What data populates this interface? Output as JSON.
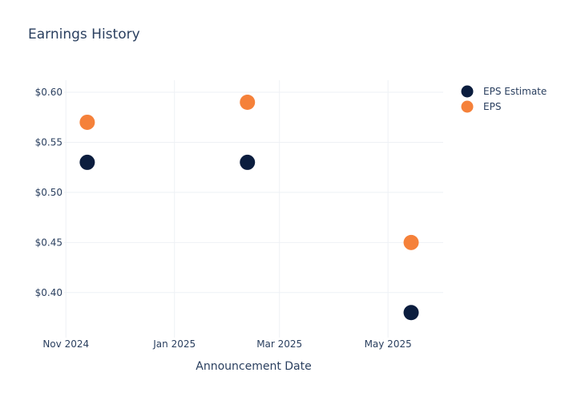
{
  "chart_data": {
    "type": "scatter",
    "title": "Earnings History",
    "xlabel": "Announcement Date",
    "ylabel": "",
    "x_ticks": [
      {
        "date": "2024-11-01",
        "label": "Nov 2024"
      },
      {
        "date": "2025-01-01",
        "label": "Jan 2025"
      },
      {
        "date": "2025-03-01",
        "label": "Mar 2025"
      },
      {
        "date": "2025-05-01",
        "label": "May 2025"
      }
    ],
    "y_ticks": [
      {
        "value": 0.4,
        "label": "$0.40"
      },
      {
        "value": 0.45,
        "label": "$0.45"
      },
      {
        "value": 0.5,
        "label": "$0.50"
      },
      {
        "value": 0.55,
        "label": "$0.55"
      },
      {
        "value": 0.6,
        "label": "$0.60"
      }
    ],
    "xlim": [
      "2024-10-31",
      "2025-06-01"
    ],
    "ylim": [
      0.355,
      0.612
    ],
    "grid": true,
    "legend_position": "top-right",
    "series": [
      {
        "name": "EPS Estimate",
        "color": "#0b1d3e",
        "points": [
          {
            "x": "2024-11-13",
            "y": 0.53
          },
          {
            "x": "2025-02-11",
            "y": 0.53
          },
          {
            "x": "2025-05-14",
            "y": 0.38
          }
        ]
      },
      {
        "name": "EPS",
        "color": "#f5813a",
        "points": [
          {
            "x": "2024-11-13",
            "y": 0.57
          },
          {
            "x": "2025-02-11",
            "y": 0.59
          },
          {
            "x": "2025-05-14",
            "y": 0.45
          }
        ]
      }
    ]
  }
}
